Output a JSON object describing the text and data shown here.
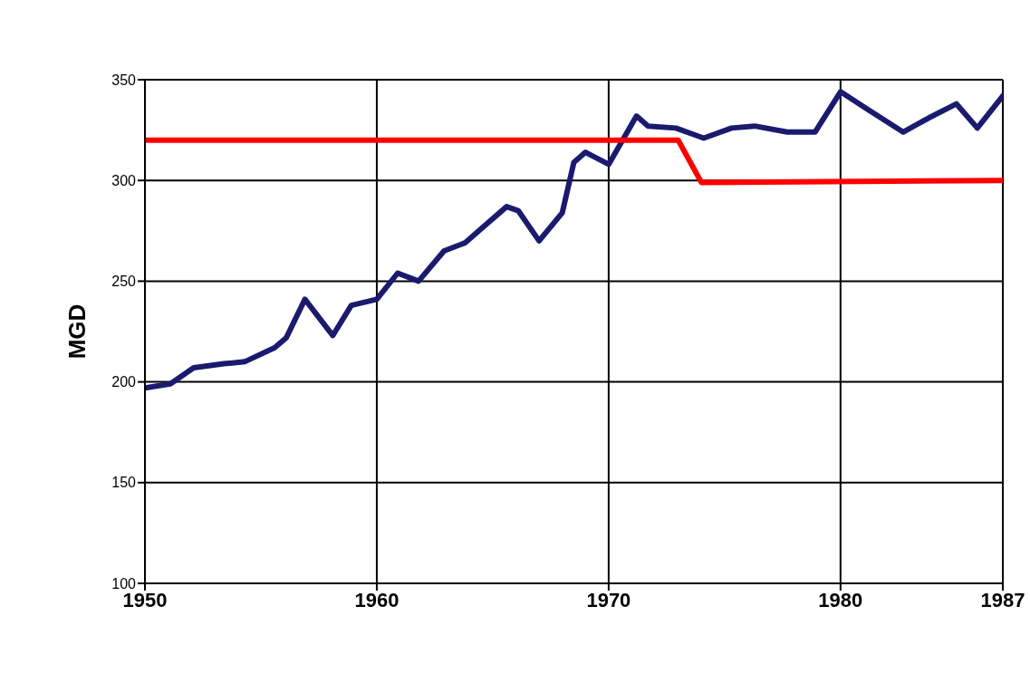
{
  "chart_data": {
    "type": "line",
    "ylabel": "MGD",
    "xlim": [
      1950,
      1987
    ],
    "xticks": [
      1950,
      1960,
      1970,
      1980,
      1987
    ],
    "ylim": [
      100,
      350
    ],
    "yticks": [
      100,
      150,
      200,
      250,
      300,
      350
    ],
    "grid": true,
    "legend": false,
    "marker": "none",
    "line_style": "solid",
    "series": [
      {
        "color": "#1a1a6e",
        "x": [
          1950,
          1951.1,
          1952.1,
          1953.4,
          1954.3,
          1955.6,
          1956.1,
          1956.9,
          1958.1,
          1958.9,
          1960,
          1960.9,
          1961.8,
          1962.9,
          1963.8,
          1965.6,
          1966.1,
          1967,
          1968,
          1968.5,
          1969,
          1970,
          1971.2,
          1971.7,
          1972.9,
          1974.1,
          1975.3,
          1976.3,
          1977.7,
          1978.9,
          1980,
          1981.2,
          1982.7,
          1983.8,
          1985,
          1985.9,
          1987
        ],
        "values": [
          197,
          199,
          207,
          209,
          210,
          217,
          222,
          241,
          223,
          238,
          241,
          254,
          250,
          265,
          269,
          287,
          285,
          270,
          284,
          309,
          314,
          308,
          332,
          327,
          326,
          321,
          326,
          327,
          324,
          324,
          344,
          335,
          324,
          331,
          338,
          326,
          342
        ]
      },
      {
        "color": "#ff0000",
        "x": [
          1950,
          1973,
          1974,
          1987
        ],
        "values": [
          320,
          320,
          299,
          300
        ]
      }
    ]
  }
}
